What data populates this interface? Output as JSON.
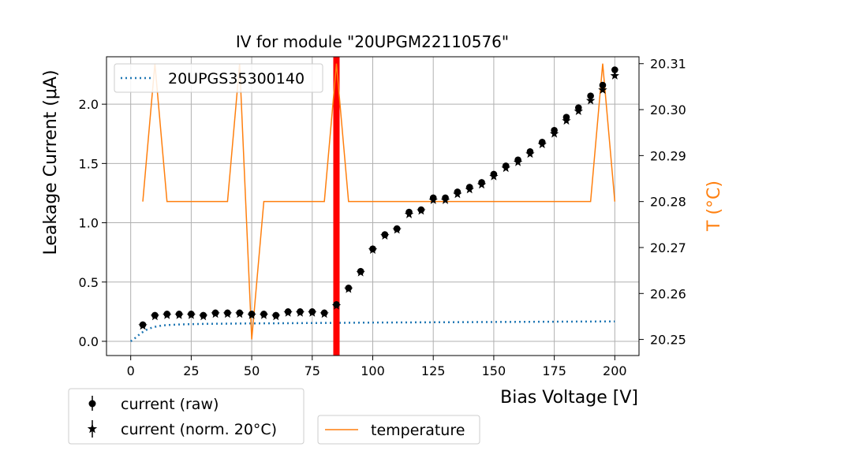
{
  "chart_data": {
    "type": "scatter",
    "title": "IV for module \"20UPGM22110576\"",
    "xlabel": "Bias Voltage [V]",
    "ylabel": "Leakage Current (μA)",
    "y2label": "T (°C)",
    "xlim": [
      -10,
      210
    ],
    "ylim": [
      -0.12,
      2.4
    ],
    "y2lim": [
      20.2465,
      20.3115
    ],
    "xticks": [
      "0",
      "25",
      "50",
      "75",
      "100",
      "125",
      "150",
      "175",
      "200"
    ],
    "yticks": [
      "0.0",
      "0.5",
      "1.0",
      "1.5",
      "2.0"
    ],
    "y2ticks": [
      "20.25",
      "20.26",
      "20.27",
      "20.28",
      "20.29",
      "20.30",
      "20.31"
    ],
    "grid": true,
    "vline_x": 85,
    "colors": {
      "raw": "#000000",
      "norm": "#000000",
      "fit": "#1f77b4",
      "temperature": "#ff7f0e",
      "vline": "#ff0000"
    },
    "x": [
      5,
      10,
      15,
      20,
      25,
      30,
      35,
      40,
      45,
      50,
      55,
      60,
      65,
      70,
      75,
      80,
      85,
      90,
      95,
      100,
      105,
      110,
      115,
      120,
      125,
      130,
      135,
      140,
      145,
      150,
      155,
      160,
      165,
      170,
      175,
      180,
      185,
      190,
      195,
      200
    ],
    "series": [
      {
        "name": "current (raw)",
        "marker": "circle",
        "values": [
          0.14,
          0.22,
          0.23,
          0.23,
          0.23,
          0.22,
          0.24,
          0.24,
          0.24,
          0.23,
          0.23,
          0.22,
          0.25,
          0.25,
          0.25,
          0.24,
          0.31,
          0.45,
          0.59,
          0.78,
          0.9,
          0.95,
          1.09,
          1.11,
          1.21,
          1.21,
          1.26,
          1.3,
          1.34,
          1.41,
          1.48,
          1.53,
          1.6,
          1.68,
          1.78,
          1.89,
          1.97,
          2.07,
          2.16,
          2.29
        ]
      },
      {
        "name": "current (norm. 20°C)",
        "marker": "star",
        "values": [
          0.13,
          0.21,
          0.22,
          0.22,
          0.22,
          0.21,
          0.23,
          0.23,
          0.23,
          0.22,
          0.22,
          0.21,
          0.24,
          0.24,
          0.24,
          0.23,
          0.3,
          0.44,
          0.58,
          0.77,
          0.89,
          0.94,
          1.07,
          1.1,
          1.19,
          1.19,
          1.24,
          1.28,
          1.32,
          1.39,
          1.46,
          1.51,
          1.58,
          1.66,
          1.75,
          1.86,
          1.94,
          2.03,
          2.12,
          2.24
        ]
      }
    ],
    "fit": {
      "name": "20UPGS35300140",
      "x": [
        0,
        2,
        4,
        6,
        8,
        10,
        12,
        14,
        16,
        18,
        20,
        25,
        30,
        40,
        50,
        60,
        80,
        100,
        120,
        140,
        160,
        180,
        200
      ],
      "values": [
        0.0,
        0.03,
        0.065,
        0.092,
        0.11,
        0.122,
        0.13,
        0.135,
        0.138,
        0.14,
        0.142,
        0.145,
        0.147,
        0.149,
        0.151,
        0.152,
        0.155,
        0.158,
        0.16,
        0.162,
        0.164,
        0.166,
        0.168
      ]
    },
    "temperature": {
      "name": "temperature",
      "x": [
        5,
        10,
        15,
        20,
        25,
        30,
        35,
        40,
        45,
        50,
        55,
        60,
        65,
        70,
        75,
        80,
        85,
        90,
        95,
        100,
        105,
        110,
        115,
        120,
        125,
        130,
        135,
        140,
        145,
        150,
        155,
        160,
        165,
        170,
        175,
        180,
        185,
        190,
        195,
        200
      ],
      "values": [
        20.28,
        20.31,
        20.28,
        20.28,
        20.28,
        20.28,
        20.28,
        20.28,
        20.31,
        20.25,
        20.28,
        20.28,
        20.28,
        20.28,
        20.28,
        20.28,
        20.31,
        20.28,
        20.28,
        20.28,
        20.28,
        20.28,
        20.28,
        20.28,
        20.28,
        20.28,
        20.28,
        20.28,
        20.28,
        20.28,
        20.28,
        20.28,
        20.28,
        20.28,
        20.28,
        20.28,
        20.28,
        20.28,
        20.31,
        20.28
      ]
    },
    "legend_entries": {
      "fit": "20UPGS35300140",
      "raw": "current (raw)",
      "norm": "current (norm. 20°C)",
      "temperature": "temperature"
    }
  }
}
